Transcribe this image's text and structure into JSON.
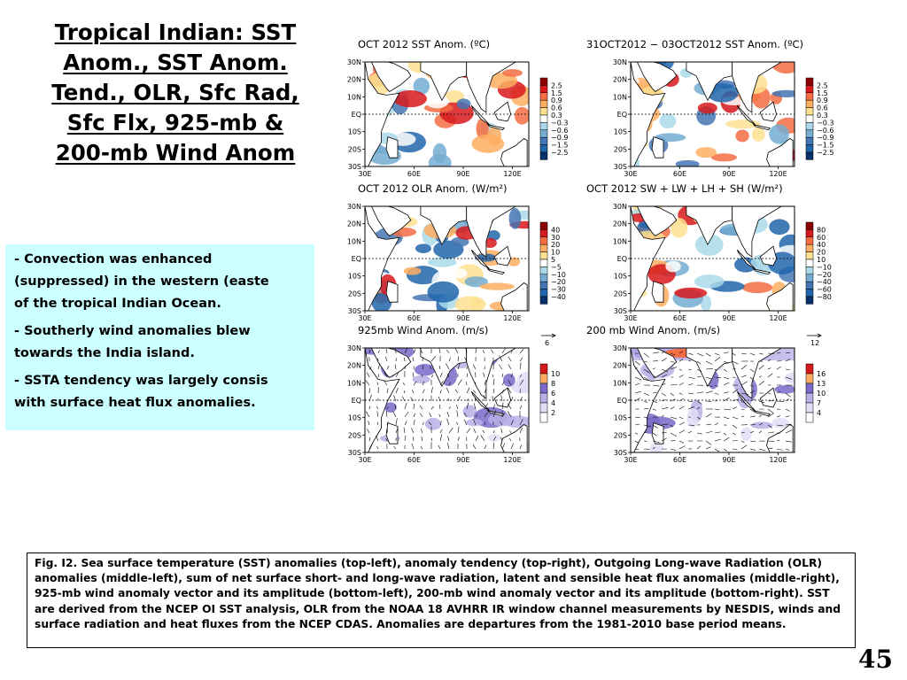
{
  "slide": {
    "title_lines": [
      "Tropical Indian: SST",
      "Anom., SST Anom.",
      "Tend., OLR, Sfc Rad,",
      "Sfc Flx, 925-mb &",
      "200-mb Wind Anom"
    ],
    "bullets": [
      {
        "dash": "- ",
        "lines": [
          "Convection was enhanced",
          "(suppressed) in the western (easte",
          "of the tropical Indian Ocean."
        ]
      },
      {
        "dash": "- ",
        "lines": [
          "Southerly  wind anomalies blew",
          "towards  the India island."
        ]
      },
      {
        "dash": "- ",
        "lines": [
          "SSTA tendency was largely consis",
          "with surface heat flux anomalies."
        ]
      }
    ],
    "caption": "Fig. I2. Sea surface temperature (SST) anomalies (top-left), anomaly tendency (top-right), Outgoing Long-wave Radiation (OLR) anomalies (middle-left), sum of net surface short- and long-wave radiation, latent and sensible heat flux anomalies (middle-right), 925-mb wind anomaly vector and its amplitude (bottom-left), 200-mb wind anomaly vector and its amplitude  (bottom-right). SST are derived from the NCEP OI SST analysis, OLR from the NOAA 18 AVHRR IR window channel measurements by NESDIS, winds and surface radiation and heat fluxes from the NCEP CDAS. Anomalies are  departures from the 1981-2010 base period means.",
    "page_number": "45"
  },
  "axes": {
    "lat_labels": [
      "30N",
      "20N",
      "10N",
      "EQ",
      "10S",
      "20S",
      "30S"
    ],
    "lon_labels": [
      "30E",
      "60E",
      "90E",
      "120E"
    ]
  },
  "panels": [
    {
      "title": "OCT 2012 SST Anom. (ºC)",
      "legend": [
        "2.5",
        "1.5",
        "0.9",
        "0.6",
        "0.3",
        "−0.3",
        "−0.6",
        "−0.9",
        "−1.5",
        "−2.5"
      ],
      "palette": "diverging"
    },
    {
      "title": "31OCT2012 − 03OCT2012 SST Anom. (ºC)",
      "legend": [
        "2.5",
        "1.5",
        "0.9",
        "0.6",
        "0.3",
        "−0.3",
        "−0.6",
        "−0.9",
        "−1.5",
        "−2.5"
      ],
      "palette": "diverging"
    },
    {
      "title": "OCT 2012 OLR Anom. (W/m²)",
      "legend": [
        "40",
        "30",
        "20",
        "10",
        "5",
        "−5",
        "−10",
        "−20",
        "−30",
        "−40"
      ],
      "palette": "diverging"
    },
    {
      "title": "OCT 2012 SW + LW + LH + SH (W/m²)",
      "legend": [
        "80",
        "60",
        "40",
        "20",
        "10",
        "−10",
        "−20",
        "−40",
        "−60",
        "−80"
      ],
      "palette": "diverging"
    },
    {
      "title": "925mb Wind Anom. (m/s)",
      "legend": [
        "10",
        "8",
        "6",
        "4",
        "2"
      ],
      "palette": "wind",
      "ref_vector": "6"
    },
    {
      "title": "200 mb Wind Anom. (m/s)",
      "legend": [
        "16",
        "13",
        "10",
        "7",
        "4"
      ],
      "palette": "wind",
      "ref_vector": "12"
    }
  ],
  "colors": {
    "notes_background": "#ccffff",
    "diverging": [
      "#8b0000",
      "#d7191c",
      "#f46d43",
      "#fdae61",
      "#fee090",
      "#ffffff",
      "#abd9e9",
      "#74add1",
      "#4575b4",
      "#2166ac",
      "#08306b"
    ],
    "wind": [
      "#d7191c",
      "#f46d43",
      "#fdae61",
      "#7b68c8",
      "#b8b0e8",
      "#e2def7",
      "#ffffff"
    ],
    "land": "#ffffff",
    "coast": "#000000"
  }
}
